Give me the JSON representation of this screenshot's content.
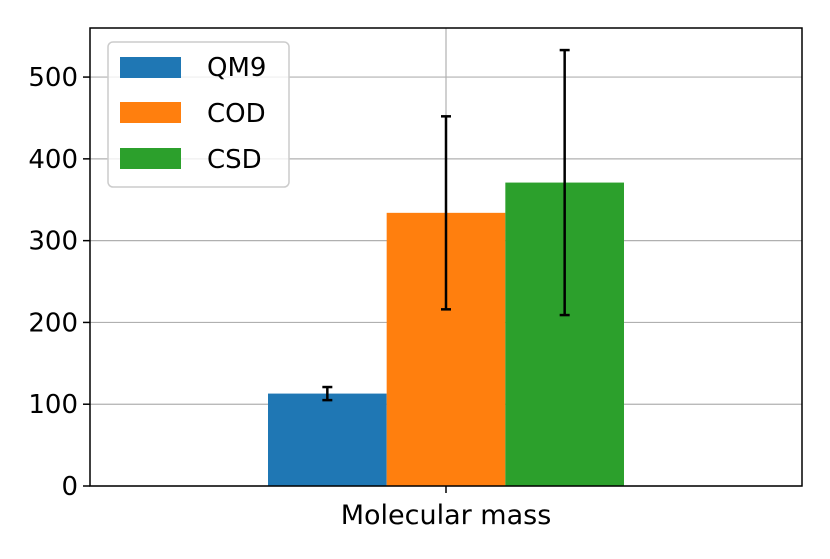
{
  "chart_data": {
    "type": "bar",
    "title": "",
    "xlabel": "",
    "ylabel": "",
    "categories": [
      "Molecular mass"
    ],
    "ylim": [
      0,
      560
    ],
    "yticks": [
      0,
      100,
      200,
      300,
      400,
      500
    ],
    "grid": true,
    "legend_position": "top-left",
    "series": [
      {
        "name": "QM9",
        "color": "#1f77b4",
        "values": [
          113
        ],
        "error": [
          [
            8
          ]
        ]
      },
      {
        "name": "COD",
        "color": "#ff7f0e",
        "values": [
          334
        ],
        "error": [
          [
            118
          ]
        ]
      },
      {
        "name": "CSD",
        "color": "#2ca02c",
        "values": [
          371
        ],
        "error": [
          [
            162
          ]
        ]
      }
    ]
  }
}
